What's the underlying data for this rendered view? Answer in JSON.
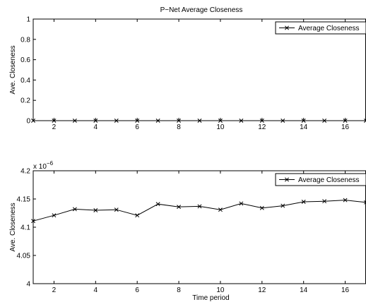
{
  "figure_title": "P−Net Average Closeness",
  "chart_data": [
    {
      "type": "line",
      "title": "P−Net Average Closeness",
      "xlabel": "",
      "ylabel": "Ave. Closeness",
      "xlim": [
        1,
        17
      ],
      "ylim": [
        0,
        1
      ],
      "xticks": [
        2,
        4,
        6,
        8,
        10,
        12,
        14,
        16
      ],
      "xtick_labels": [
        "2",
        "4",
        "6",
        "8",
        "10",
        "12",
        "14",
        "16"
      ],
      "yticks": [
        0,
        0.2,
        0.4,
        0.6,
        0.8,
        1
      ],
      "ytick_labels": [
        "0",
        "0.2",
        "0.4",
        "0.6",
        "0.8",
        "1"
      ],
      "grid": false,
      "legend": "top-right",
      "marker": "x",
      "series": [
        {
          "name": "Average Closeness",
          "x": [
            1,
            2,
            3,
            4,
            5,
            6,
            7,
            8,
            9,
            10,
            11,
            12,
            13,
            14,
            15,
            16,
            17
          ],
          "values": [
            0,
            0,
            0,
            0,
            0,
            0,
            0,
            0,
            0,
            0,
            0,
            0,
            0,
            0,
            0,
            0,
            0
          ]
        }
      ]
    },
    {
      "type": "line",
      "title": "",
      "xlabel": "Time period",
      "ylabel": "Ave. Closeness",
      "exponent_label": "x 10",
      "exponent_power": "−6",
      "xlim": [
        1,
        17
      ],
      "ylim": [
        4.0,
        4.2
      ],
      "xticks": [
        2,
        4,
        6,
        8,
        10,
        12,
        14,
        16
      ],
      "xtick_labels": [
        "2",
        "4",
        "6",
        "8",
        "10",
        "12",
        "14",
        "16"
      ],
      "yticks": [
        4.0,
        4.05,
        4.1,
        4.15,
        4.2
      ],
      "ytick_labels": [
        "4",
        "4.05",
        "4.1",
        "4.15",
        "4.2"
      ],
      "grid": false,
      "legend": "top-right",
      "marker": "x",
      "series": [
        {
          "name": "Average Closeness",
          "x": [
            1,
            2,
            3,
            4,
            5,
            6,
            7,
            8,
            9,
            10,
            11,
            12,
            13,
            14,
            15,
            16,
            17
          ],
          "values": [
            4.111,
            4.121,
            4.132,
            4.13,
            4.131,
            4.121,
            4.141,
            4.136,
            4.137,
            4.131,
            4.142,
            4.134,
            4.138,
            4.145,
            4.146,
            4.148,
            4.144
          ]
        }
      ]
    }
  ]
}
